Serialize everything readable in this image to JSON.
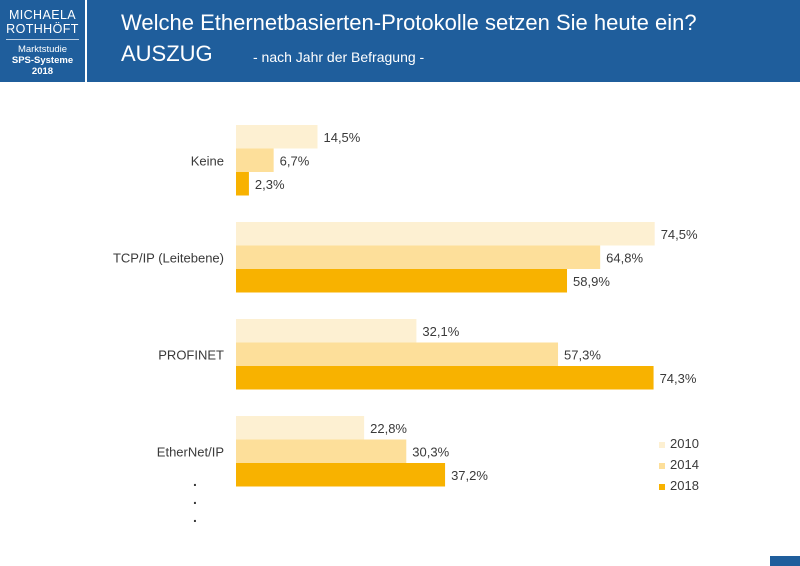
{
  "header": {
    "logo_line1": "MICHAELA",
    "logo_line2": "ROTHHÖFT",
    "logo_study": "Marktstudie",
    "logo_sps": "SPS-Systeme",
    "logo_year": "2018",
    "title": "Welche Ethernetbasierten-Protokolle setzen Sie heute ein?",
    "subtitle_main": "AUSZUG",
    "subtitle_note": "- nach Jahr der Befragung -"
  },
  "chart_data": {
    "type": "bar",
    "orientation": "horizontal",
    "categories": [
      "Keine",
      "TCP/IP (Leitebene)",
      "PROFINET",
      "EtherNet/IP"
    ],
    "series": [
      {
        "name": "2010",
        "color": "#fdf0d2",
        "values": [
          14.5,
          74.5,
          32.1,
          22.8
        ],
        "labels": [
          "14,5%",
          "74,5%",
          "32,1%",
          "22,8%"
        ]
      },
      {
        "name": "2014",
        "color": "#fddf9a",
        "values": [
          6.7,
          64.8,
          57.3,
          30.3
        ],
        "labels": [
          "6,7%",
          "64,8%",
          "57,3%",
          "30,3%"
        ]
      },
      {
        "name": "2018",
        "color": "#f8b200",
        "values": [
          2.3,
          58.9,
          74.3,
          37.2
        ],
        "labels": [
          "2,3%",
          "58,9%",
          "74,3%",
          "37,2%"
        ]
      }
    ],
    "xlim": [
      0,
      100
    ],
    "unit": "%",
    "grid": false,
    "legend_position": "bottom-right",
    "continuation_marks": ".",
    "title": "Welche Ethernetbasierten-Protokolle setzen Sie heute ein?"
  }
}
